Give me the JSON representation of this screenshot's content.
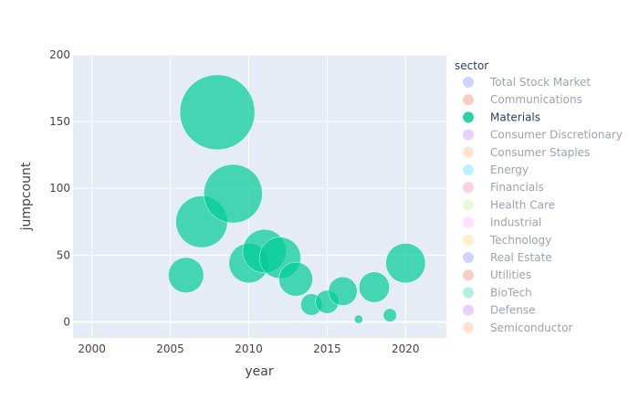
{
  "chart_data": {
    "type": "scatter",
    "title": "",
    "xlabel": "year",
    "ylabel": "jumpcount",
    "xlim": [
      1998.8,
      2022.6
    ],
    "ylim": [
      -12,
      200
    ],
    "xticks": [
      2000,
      2005,
      2010,
      2015,
      2020
    ],
    "yticks": [
      0,
      50,
      100,
      150,
      200
    ],
    "x_tick_labels": [
      "2000",
      "2005",
      "2010",
      "2015",
      "2020"
    ],
    "y_tick_labels": [
      "0",
      "50",
      "100",
      "150",
      "200"
    ],
    "grid": true,
    "legend": {
      "title": "sector",
      "placement": "right",
      "items": [
        {
          "name": "Total Stock Market",
          "color": "#636efa",
          "active": false
        },
        {
          "name": "Communications",
          "color": "#EF553B",
          "active": false
        },
        {
          "name": "Materials",
          "color": "#00cc96",
          "active": true
        },
        {
          "name": "Consumer Discretionary",
          "color": "#ab63fa",
          "active": false
        },
        {
          "name": "Consumer Staples",
          "color": "#FFA15A",
          "active": false
        },
        {
          "name": "Energy",
          "color": "#19d3f3",
          "active": false
        },
        {
          "name": "Financials",
          "color": "#FF6692",
          "active": false
        },
        {
          "name": "Health Care",
          "color": "#B6E880",
          "active": false
        },
        {
          "name": "Industrial",
          "color": "#FF97FF",
          "active": false
        },
        {
          "name": "Technology",
          "color": "#FECB52",
          "active": false
        },
        {
          "name": "Real Estate",
          "color": "#636efa",
          "active": false
        },
        {
          "name": "Utilities",
          "color": "#EF553B",
          "active": false
        },
        {
          "name": "BioTech",
          "color": "#00cc96",
          "active": false
        },
        {
          "name": "Defense",
          "color": "#ab63fa",
          "active": false
        },
        {
          "name": "Semiconductor",
          "color": "#FFA15A",
          "active": false
        }
      ]
    },
    "series": [
      {
        "name": "Materials",
        "color": "#00cc96",
        "points": [
          {
            "x": 2006,
            "y": 35
          },
          {
            "x": 2007,
            "y": 75
          },
          {
            "x": 2008,
            "y": 157
          },
          {
            "x": 2009,
            "y": 96
          },
          {
            "x": 2010,
            "y": 44
          },
          {
            "x": 2011,
            "y": 53
          },
          {
            "x": 2012,
            "y": 48
          },
          {
            "x": 2013,
            "y": 32
          },
          {
            "x": 2014,
            "y": 13
          },
          {
            "x": 2015,
            "y": 15
          },
          {
            "x": 2016,
            "y": 23
          },
          {
            "x": 2017,
            "y": 2
          },
          {
            "x": 2018,
            "y": 26
          },
          {
            "x": 2019,
            "y": 5
          },
          {
            "x": 2020,
            "y": 44
          }
        ]
      }
    ]
  }
}
